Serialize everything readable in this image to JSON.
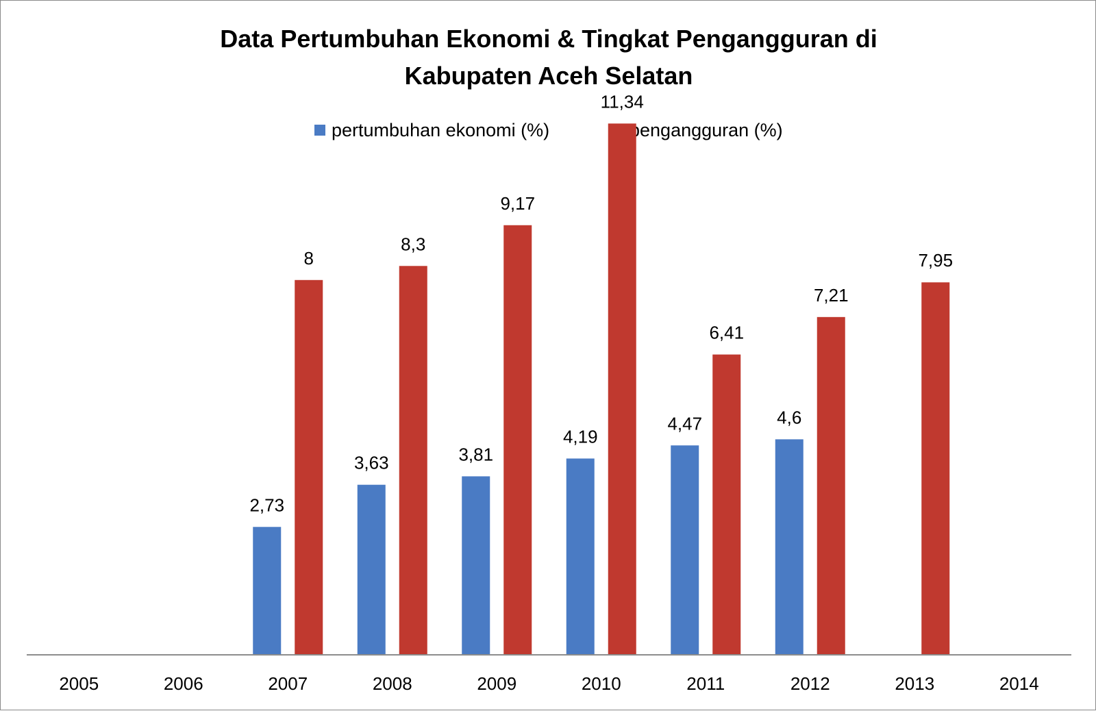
{
  "chart_data": {
    "type": "bar",
    "title": "Data Pertumbuhan Ekonomi & Tingkat Pengangguran di Kabupaten Aceh Selatan",
    "title_lines": [
      "Data Pertumbuhan Ekonomi & Tingkat Pengangguran di",
      "Kabupaten Aceh Selatan"
    ],
    "categories": [
      "2005",
      "2006",
      "2007",
      "2008",
      "2009",
      "2010",
      "2011",
      "2012",
      "2013",
      "2014"
    ],
    "series": [
      {
        "name": "pertumbuhan ekonomi (%)",
        "color": "#4a7bc4",
        "values": [
          null,
          null,
          2.73,
          3.63,
          3.81,
          4.19,
          4.47,
          4.6,
          null,
          null
        ],
        "labels": [
          null,
          null,
          "2,73",
          "3,63",
          "3,81",
          "4,19",
          "4,47",
          "4,6",
          null,
          null
        ]
      },
      {
        "name": "pengangguran (%)",
        "color": "#c0392f",
        "values": [
          null,
          null,
          8,
          8.3,
          9.17,
          11.34,
          6.41,
          7.21,
          7.95,
          null
        ],
        "labels": [
          null,
          null,
          "8",
          "8,3",
          "9,17",
          "11,34",
          "6,41",
          "7,21",
          "7,95",
          null
        ]
      }
    ],
    "xlabel": "",
    "ylabel": "",
    "ylim": [
      0,
      12.5
    ],
    "grid": false,
    "legend_position": "top-center",
    "colors": {
      "axis": "#8c8c8c",
      "frame": "#8a8a8a"
    }
  }
}
